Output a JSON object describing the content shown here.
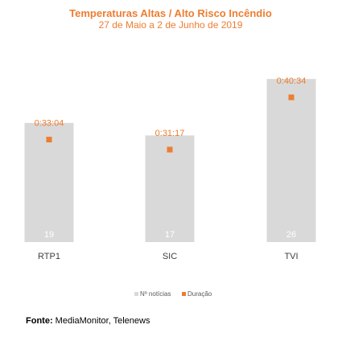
{
  "chart_data": {
    "type": "bar",
    "title": "Temperaturas Altas / Alto Risco Incêndio",
    "subtitle": "27 de Maio a 2 de Junho de 2019",
    "categories": [
      "RTP1",
      "SIC",
      "TVI"
    ],
    "series": [
      {
        "name": "Nº notícias",
        "type": "bar",
        "values": [
          19,
          17,
          26
        ],
        "color": "#D9D9D9"
      },
      {
        "name": "Duração",
        "type": "marker",
        "values": [
          "0:33:04",
          "0:31:17",
          "0:40:34"
        ],
        "color": "#ED7D31"
      }
    ],
    "legend_position": "bottom",
    "grid": false
  },
  "source": {
    "label": "Fonte:",
    "text": "MediaMonitor, Telenews"
  }
}
